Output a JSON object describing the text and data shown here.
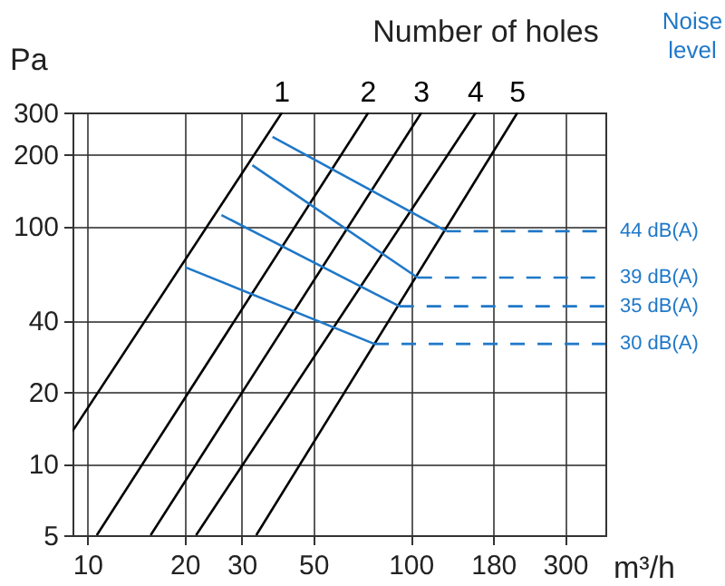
{
  "chart_data": {
    "type": "line",
    "title": "Number of holes",
    "xlabel": "m³/h",
    "ylabel": "Pa",
    "annotations": [
      "Noise level"
    ],
    "log": "xy",
    "grid": true,
    "xlim": [
      9,
      400
    ],
    "ylim": [
      5,
      300
    ],
    "xticks": [
      10,
      20,
      30,
      50,
      100,
      180,
      300
    ],
    "yticks": [
      5,
      10,
      20,
      40,
      100,
      200,
      300
    ],
    "series": [
      {
        "name": "1",
        "color": "#000000",
        "x": [
          9,
          40
        ],
        "values": [
          13.7,
          300
        ]
      },
      {
        "name": "2",
        "color": "#000000",
        "x": [
          10.7,
          74
        ],
        "values": [
          5,
          300
        ]
      },
      {
        "name": "3",
        "color": "#000000",
        "x": [
          15.7,
          108
        ],
        "values": [
          5,
          300
        ]
      },
      {
        "name": "4",
        "color": "#000000",
        "x": [
          21.7,
          159
        ],
        "values": [
          5,
          300
        ]
      },
      {
        "name": "5",
        "color": "#000000",
        "x": [
          33.3,
          214
        ],
        "values": [
          5,
          300
        ]
      },
      {
        "color": "#1f78c8",
        "x": [
          37.4,
          129
        ],
        "values": [
          237,
          95
        ]
      },
      {
        "color": "#1f78c8",
        "x": [
          32.4,
          105
        ],
        "values": [
          180,
          60.6
        ]
      },
      {
        "color": "#1f78c8",
        "x": [
          26,
          92.3
        ],
        "values": [
          111,
          45.9
        ]
      },
      {
        "color": "#1f78c8",
        "x": [
          20.1,
          77.2
        ],
        "values": [
          67,
          31.9
        ]
      },
      {
        "name": "44 dB(A)",
        "color": "#1f78c8",
        "line_style": "dashed",
        "x": [
          129,
          400
        ],
        "values": [
          95,
          95
        ]
      },
      {
        "name": "39 dB(A)",
        "color": "#1f78c8",
        "line_style": "dashed",
        "x": [
          105,
          400
        ],
        "values": [
          60.6,
          60.6
        ]
      },
      {
        "name": "35 dB(A)",
        "color": "#1f78c8",
        "line_style": "dashed",
        "x": [
          92.3,
          400
        ],
        "values": [
          45.9,
          45.9
        ]
      },
      {
        "name": "30 dB(A)",
        "color": "#1f78c8",
        "line_style": "dashed",
        "x": [
          77.2,
          400
        ],
        "values": [
          31.9,
          31.9
        ]
      }
    ]
  }
}
